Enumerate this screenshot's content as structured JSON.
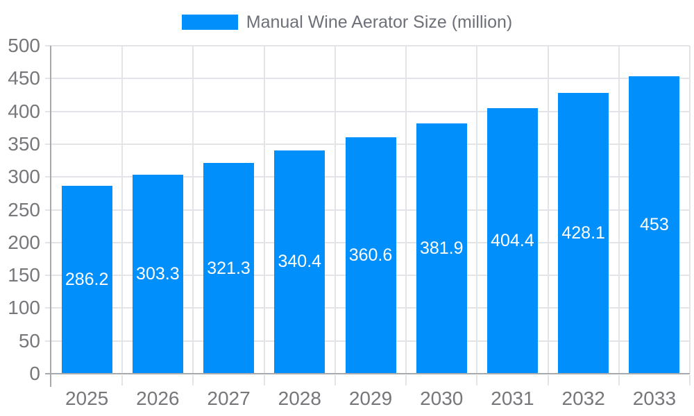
{
  "legend": {
    "label": "Manual Wine Aerator Size (million)"
  },
  "chart_data": {
    "type": "bar",
    "title": "Manual Wine Aerator Size (million)",
    "series_name": "Manual Wine Aerator Size (million)",
    "categories": [
      "2025",
      "2026",
      "2027",
      "2028",
      "2029",
      "2030",
      "2031",
      "2032",
      "2033"
    ],
    "values": [
      286.2,
      303.3,
      321.3,
      340.4,
      360.6,
      381.9,
      404.4,
      428.1,
      453
    ],
    "value_labels": [
      "286.2",
      "303.3",
      "321.3",
      "340.4",
      "360.6",
      "381.9",
      "404.4",
      "428.1",
      "453"
    ],
    "xlabel": "",
    "ylabel": "",
    "ylim": [
      0,
      500
    ],
    "ytick_interval": 50,
    "y_tick_labels": [
      "0",
      "50",
      "100",
      "150",
      "200",
      "250",
      "300",
      "350",
      "400",
      "450",
      "500"
    ],
    "grid": true,
    "legend_position": "top-center",
    "value_label_position": "inside-center",
    "colors": {
      "bar": "#008FFB",
      "value_label": "#FFFFFF",
      "gridline": "#E2E4E8",
      "axis_line": "#A6A9AE",
      "axis_label": "#76777B",
      "legend_text": "#6E7079",
      "background": "#FFFFFF"
    }
  }
}
